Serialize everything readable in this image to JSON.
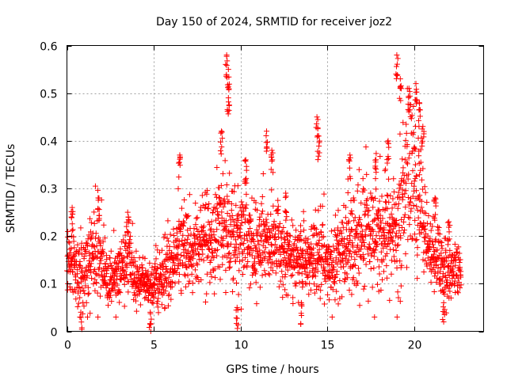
{
  "chart_data": {
    "type": "scatter",
    "title": "Day 150 of 2024, SRMTID for receiver joz2",
    "xlabel": "GPS time / hours",
    "ylabel": "SRMTID / TECUs",
    "xlim": [
      0,
      24
    ],
    "ylim": [
      0,
      0.6
    ],
    "x_ticks": [
      0,
      5,
      10,
      15,
      20
    ],
    "x_tick_labels": [
      "0",
      "5",
      "10",
      "15",
      "20"
    ],
    "y_ticks": [
      0,
      0.1,
      0.2,
      0.3,
      0.4,
      0.5,
      0.6
    ],
    "y_tick_labels": [
      "0",
      "0.1",
      "0.2",
      "0.3",
      "0.4",
      "0.5",
      "0.6"
    ],
    "grid": true,
    "marker": "+",
    "color": "#ff0000",
    "x_data_end": 22.7,
    "profile": {
      "x": [
        0,
        0.3,
        0.6,
        0.9,
        1.2,
        1.5,
        1.8,
        2.1,
        2.4,
        2.7,
        3.0,
        3.3,
        3.6,
        3.9,
        4.2,
        4.5,
        4.8,
        5.1,
        5.4,
        5.7,
        6.0,
        6.3,
        6.6,
        6.9,
        7.2,
        7.5,
        7.8,
        8.1,
        8.4,
        8.7,
        9.0,
        9.3,
        9.6,
        9.9,
        10.2,
        10.5,
        10.8,
        11.1,
        11.4,
        11.7,
        12.0,
        12.3,
        12.6,
        12.9,
        13.2,
        13.5,
        13.8,
        14.1,
        14.4,
        14.7,
        15.0,
        15.3,
        15.6,
        15.9,
        16.2,
        16.5,
        16.8,
        17.1,
        17.4,
        17.7,
        18.0,
        18.3,
        18.6,
        18.9,
        19.2,
        19.5,
        19.8,
        20.1,
        20.4,
        20.7,
        21.0,
        21.3,
        21.6,
        21.9,
        22.2,
        22.5,
        22.7
      ],
      "mean": [
        0.14,
        0.15,
        0.12,
        0.13,
        0.14,
        0.15,
        0.18,
        0.13,
        0.11,
        0.11,
        0.12,
        0.13,
        0.15,
        0.11,
        0.1,
        0.1,
        0.09,
        0.1,
        0.11,
        0.12,
        0.14,
        0.16,
        0.18,
        0.17,
        0.16,
        0.17,
        0.18,
        0.19,
        0.19,
        0.21,
        0.22,
        0.2,
        0.2,
        0.19,
        0.2,
        0.19,
        0.18,
        0.18,
        0.19,
        0.18,
        0.18,
        0.17,
        0.16,
        0.15,
        0.14,
        0.15,
        0.15,
        0.15,
        0.17,
        0.16,
        0.15,
        0.15,
        0.16,
        0.17,
        0.17,
        0.18,
        0.19,
        0.21,
        0.2,
        0.2,
        0.2,
        0.21,
        0.2,
        0.21,
        0.24,
        0.3,
        0.34,
        0.32,
        0.26,
        0.2,
        0.16,
        0.15,
        0.14,
        0.13,
        0.13,
        0.14,
        0.12
      ],
      "spread": [
        0.04,
        0.05,
        0.04,
        0.05,
        0.05,
        0.06,
        0.06,
        0.05,
        0.04,
        0.04,
        0.04,
        0.05,
        0.05,
        0.04,
        0.03,
        0.03,
        0.03,
        0.04,
        0.04,
        0.04,
        0.05,
        0.06,
        0.07,
        0.06,
        0.05,
        0.05,
        0.06,
        0.06,
        0.06,
        0.08,
        0.09,
        0.08,
        0.08,
        0.07,
        0.07,
        0.06,
        0.06,
        0.06,
        0.07,
        0.06,
        0.06,
        0.05,
        0.05,
        0.05,
        0.04,
        0.05,
        0.05,
        0.05,
        0.07,
        0.06,
        0.05,
        0.05,
        0.06,
        0.06,
        0.06,
        0.07,
        0.07,
        0.08,
        0.07,
        0.07,
        0.07,
        0.08,
        0.07,
        0.08,
        0.1,
        0.11,
        0.12,
        0.11,
        0.09,
        0.06,
        0.05,
        0.05,
        0.04,
        0.04,
        0.04,
        0.04,
        0.03
      ]
    },
    "peaks": [
      {
        "x": 0.3,
        "y": 0.26
      },
      {
        "x": 1.8,
        "y": 0.28
      },
      {
        "x": 3.5,
        "y": 0.25
      },
      {
        "x": 6.5,
        "y": 0.37
      },
      {
        "x": 8.9,
        "y": 0.42
      },
      {
        "x": 9.2,
        "y": 0.58
      },
      {
        "x": 9.3,
        "y": 0.55
      },
      {
        "x": 9.3,
        "y": 0.49
      },
      {
        "x": 10.3,
        "y": 0.36
      },
      {
        "x": 11.5,
        "y": 0.42
      },
      {
        "x": 11.8,
        "y": 0.38
      },
      {
        "x": 12.6,
        "y": 0.29
      },
      {
        "x": 14.4,
        "y": 0.45
      },
      {
        "x": 14.5,
        "y": 0.41
      },
      {
        "x": 16.3,
        "y": 0.37
      },
      {
        "x": 17.8,
        "y": 0.36
      },
      {
        "x": 18.5,
        "y": 0.4
      },
      {
        "x": 19.0,
        "y": 0.58
      },
      {
        "x": 19.2,
        "y": 0.53
      },
      {
        "x": 19.7,
        "y": 0.51
      },
      {
        "x": 20.1,
        "y": 0.52
      },
      {
        "x": 20.3,
        "y": 0.48
      },
      {
        "x": 20.5,
        "y": 0.43
      },
      {
        "x": 21.2,
        "y": 0.28
      },
      {
        "x": 22.0,
        "y": 0.23
      },
      {
        "x": 13.5,
        "y": 0.06
      },
      {
        "x": 4.8,
        "y": 0.04
      },
      {
        "x": 0.8,
        "y": 0.04
      },
      {
        "x": 9.8,
        "y": 0.05
      },
      {
        "x": 21.7,
        "y": 0.06
      }
    ]
  }
}
